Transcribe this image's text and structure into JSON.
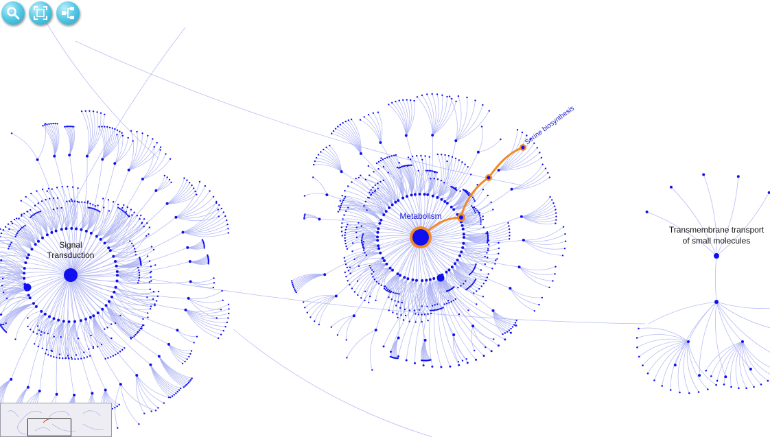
{
  "toolbar": {
    "buttons": [
      {
        "name": "search",
        "icon": "magnifier-icon"
      },
      {
        "name": "fit-to-screen",
        "icon": "fit-screen-icon"
      },
      {
        "name": "layout",
        "icon": "hierarchy-icon"
      }
    ]
  },
  "labels": {
    "signal_line1": "Signal",
    "signal_line2": "Transduction",
    "metabolism": "Metabolism",
    "serine": "Serine biosynthesis",
    "transport_line1": "Transmembrane transport",
    "transport_line2": "of small molecules"
  },
  "colors": {
    "edge": "#aab0f2",
    "node": "#1010ee",
    "highlight": "#f08a24",
    "label": "#111111",
    "highlight_label": "#1a1acc"
  },
  "highlighted_path": [
    "Metabolism",
    "Serine biosynthesis"
  ],
  "minimap": {
    "visible": true
  }
}
